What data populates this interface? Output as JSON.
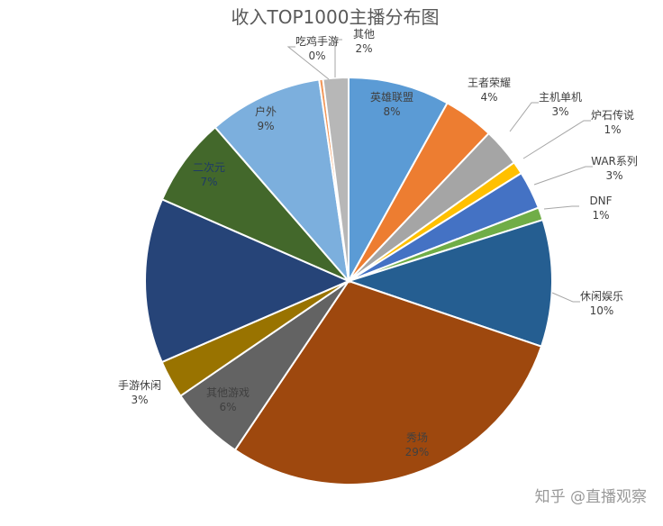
{
  "chart_data": {
    "type": "pie",
    "title": "收入TOP1000主播分布图",
    "slices": [
      {
        "name": "英雄联盟",
        "value": 8,
        "label": "8%",
        "color": "#5b9bd5"
      },
      {
        "name": "王者荣耀",
        "value": 4,
        "label": "4%",
        "color": "#ed7d31"
      },
      {
        "name": "主机单机",
        "value": 3,
        "label": "3%",
        "color": "#a5a5a5"
      },
      {
        "name": "炉石传说",
        "value": 1,
        "label": "1%",
        "color": "#ffc000"
      },
      {
        "name": "WAR系列",
        "value": 3,
        "label": "3%",
        "color": "#4472c4"
      },
      {
        "name": "DNF",
        "value": 1,
        "label": "1%",
        "color": "#70ad47"
      },
      {
        "name": "休闲娱乐",
        "value": 10,
        "label": "10%",
        "color": "#255e91"
      },
      {
        "name": "秀场",
        "value": 29,
        "label": "29%",
        "color": "#9e480e"
      },
      {
        "name": "其他游戏",
        "value": 6,
        "label": "6%",
        "color": "#636363"
      },
      {
        "name": "手游休闲",
        "value": 3,
        "label": "3%",
        "color": "#997300"
      },
      {
        "name": "",
        "value": 13,
        "label": "",
        "color": "#264478"
      },
      {
        "name": "二次元",
        "value": 7,
        "label": "7%",
        "color": "#43682b"
      },
      {
        "name": "户外",
        "value": 9,
        "label": "9%",
        "color": "#7cafdd"
      },
      {
        "name": "吃鸡手游",
        "value": 0.3,
        "label": "0%",
        "color": "#f1975a"
      },
      {
        "name": "其他",
        "value": 2,
        "label": "2%",
        "color": "#b7b7b7"
      }
    ]
  },
  "watermark": "知乎 @直播观察"
}
